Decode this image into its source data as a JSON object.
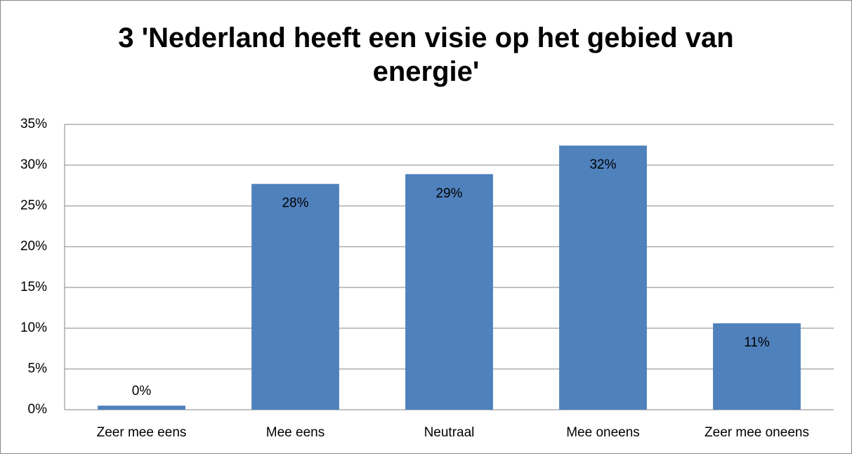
{
  "chart_data": {
    "type": "bar",
    "title": "3 'Nederland heeft een visie op het gebied van energie'",
    "categories": [
      "Zeer mee eens",
      "Mee eens",
      "Neutraal",
      "Mee oneens",
      "Zeer mee oneens"
    ],
    "values": [
      0.5,
      27.7,
      28.9,
      32.4,
      10.6
    ],
    "value_labels": [
      "0%",
      "28%",
      "29%",
      "32%",
      "11%"
    ],
    "color": "#4f81bd",
    "ylim": [
      0,
      35
    ],
    "yticks": [
      {
        "value": 0,
        "label": "0%"
      },
      {
        "value": 5,
        "label": "5%"
      },
      {
        "value": 10,
        "label": "10%"
      },
      {
        "value": 15,
        "label": "15%"
      },
      {
        "value": 20,
        "label": "20%"
      },
      {
        "value": 25,
        "label": "25%"
      },
      {
        "value": 30,
        "label": "30%"
      },
      {
        "value": 35,
        "label": "35%"
      }
    ],
    "grid": true
  }
}
